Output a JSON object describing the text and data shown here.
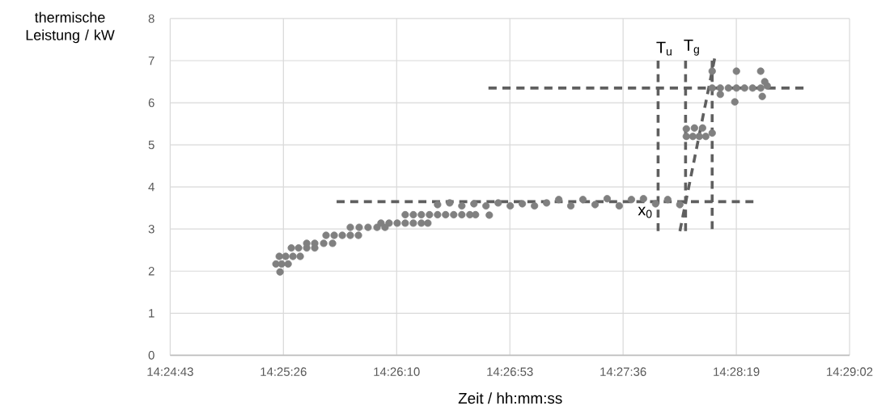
{
  "chart_data": {
    "type": "scatter",
    "xlabel": "Zeit / hh:mm:ss",
    "ylabel": "thermische Leistung / kW",
    "xlim": [
      14.412,
      14.484
    ],
    "ylim": [
      0,
      8
    ],
    "xticks": [
      {
        "value": 14.412,
        "label": "14:24:43"
      },
      {
        "value": 14.424,
        "label": "14:25:26"
      },
      {
        "value": 14.436,
        "label": "14:26:10"
      },
      {
        "value": 14.448,
        "label": "14:26:53"
      },
      {
        "value": 14.46,
        "label": "14:27:36"
      },
      {
        "value": 14.472,
        "label": "14:28:19"
      },
      {
        "value": 14.484,
        "label": "14:29:02"
      }
    ],
    "yticks": [
      0,
      1,
      2,
      3,
      4,
      5,
      6,
      7,
      8
    ],
    "grid": true,
    "marker": "circle",
    "series": [
      {
        "color": "#808080",
        "x": [
          14.42364,
          14.42321,
          14.42381,
          14.4245,
          14.42356,
          14.42424,
          14.42501,
          14.42578,
          14.42484,
          14.42561,
          14.42647,
          14.42732,
          14.42647,
          14.42732,
          14.42827,
          14.42921,
          14.42852,
          14.42938,
          14.43024,
          14.43109,
          14.43195,
          14.43109,
          14.43203,
          14.43297,
          14.43392,
          14.43477,
          14.43434,
          14.4352,
          14.43606,
          14.43691,
          14.43777,
          14.43862,
          14.43931,
          14.43691,
          14.43777,
          14.43862,
          14.43948,
          14.44034,
          14.44119,
          14.44205,
          14.44291,
          14.44376,
          14.44436,
          14.44582,
          14.44034,
          14.44162,
          14.44291,
          14.44419,
          14.44547,
          14.44676,
          14.44804,
          14.44932,
          14.45061,
          14.45189,
          14.45318,
          14.45446,
          14.45574,
          14.45703,
          14.45831,
          14.45959,
          14.46088,
          14.46216,
          14.46344,
          14.46473,
          14.46601,
          14.4667,
          14.46739,
          14.46807,
          14.46876,
          14.46944,
          14.4667,
          14.46756,
          14.46842,
          14.46944,
          14.4703,
          14.47116,
          14.47201,
          14.47287,
          14.47372,
          14.47458,
          14.47527,
          14.46944,
          14.47201,
          14.47458,
          14.4703,
          14.47184,
          14.47475,
          14.47501
        ],
        "values": [
          1.98,
          2.17,
          2.17,
          2.17,
          2.35,
          2.35,
          2.35,
          2.35,
          2.55,
          2.55,
          2.55,
          2.55,
          2.66,
          2.66,
          2.66,
          2.66,
          2.85,
          2.85,
          2.85,
          2.85,
          2.85,
          3.04,
          3.04,
          3.04,
          3.04,
          3.04,
          3.14,
          3.14,
          3.14,
          3.14,
          3.14,
          3.14,
          3.14,
          3.34,
          3.34,
          3.34,
          3.34,
          3.34,
          3.34,
          3.34,
          3.34,
          3.34,
          3.34,
          3.33,
          3.58,
          3.62,
          3.55,
          3.6,
          3.55,
          3.62,
          3.55,
          3.6,
          3.55,
          3.62,
          3.7,
          3.55,
          3.7,
          3.58,
          3.72,
          3.55,
          3.7,
          3.72,
          3.6,
          3.7,
          3.58,
          5.2,
          5.2,
          5.2,
          5.2,
          5.28,
          5.38,
          5.4,
          5.4,
          6.35,
          6.35,
          6.35,
          6.35,
          6.35,
          6.35,
          6.35,
          6.4,
          6.75,
          6.75,
          6.75,
          6.2,
          6.02,
          6.15,
          6.5
        ]
      },
      {
        "type": "line",
        "color": "#5f5f5f",
        "line_style": "dashed",
        "marker": "none",
        "x": [
          14.42964,
          14.47381
        ],
        "values": [
          3.65,
          3.65
        ]
      },
      {
        "type": "line",
        "color": "#5f5f5f",
        "line_style": "dashed",
        "marker": "none",
        "x": [
          14.44573,
          14.47912
        ],
        "values": [
          6.35,
          6.35
        ]
      },
      {
        "type": "line",
        "color": "#5f5f5f",
        "line_style": "dashed",
        "marker": "none",
        "x": [
          14.46371,
          14.46371
        ],
        "values": [
          2.95,
          7.0
        ]
      },
      {
        "type": "line",
        "color": "#5f5f5f",
        "line_style": "dashed",
        "marker": "none",
        "x": [
          14.46662,
          14.46662
        ],
        "values": [
          2.95,
          7.0
        ]
      },
      {
        "type": "line",
        "color": "#5f5f5f",
        "line_style": "dashed",
        "marker": "none",
        "x": [
          14.46944,
          14.46944
        ],
        "values": [
          3.0,
          7.0
        ]
      },
      {
        "type": "line",
        "color": "#5f5f5f",
        "line_style": "dashed",
        "marker": "none",
        "x": [
          14.46602,
          14.4697
        ],
        "values": [
          2.95,
          7.05
        ]
      }
    ],
    "annotations": [
      "T$_{u}$",
      "T$_{g}$",
      "x$_{0}$"
    ]
  }
}
